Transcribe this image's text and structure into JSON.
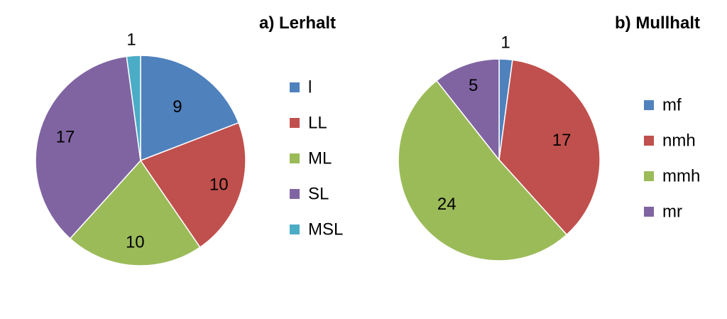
{
  "chart_data": [
    {
      "type": "pie",
      "title": "a) Lerhalt",
      "categories": [
        "l",
        "LL",
        "ML",
        "SL",
        "MSL"
      ],
      "values": [
        9,
        10,
        10,
        17,
        1
      ],
      "colors": [
        "#4F81BD",
        "#C0504D",
        "#9BBB59",
        "#8064A2",
        "#4BACC6"
      ],
      "legend_position": "right"
    },
    {
      "type": "pie",
      "title": "b) Mullhalt",
      "categories": [
        "mf",
        "nmh",
        "mmh",
        "mr"
      ],
      "values": [
        1,
        17,
        24,
        5
      ],
      "colors": [
        "#4F81BD",
        "#C0504D",
        "#9BBB59",
        "#8064A2"
      ],
      "legend_position": "right"
    }
  ]
}
